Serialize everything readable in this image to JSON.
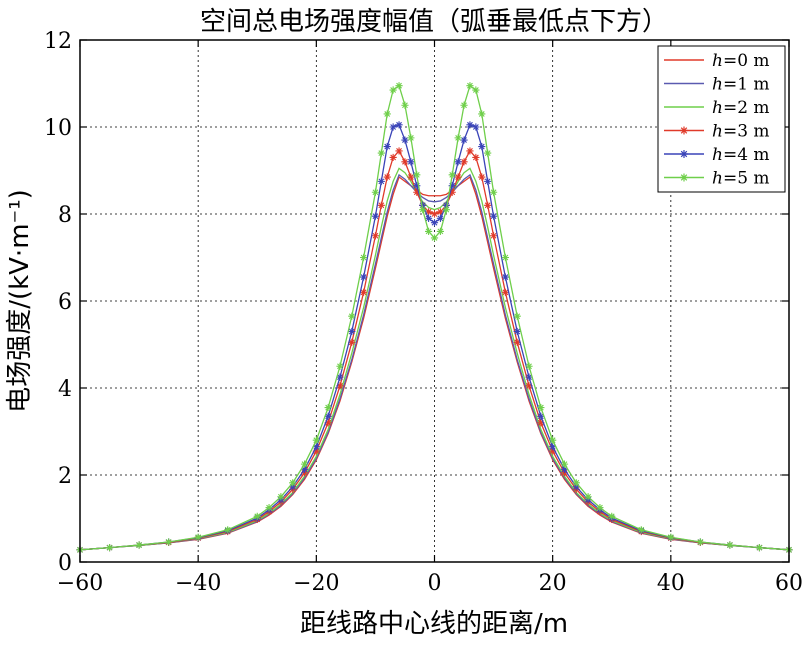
{
  "chart_data": {
    "type": "line",
    "title": "空间总电场强度幅值（弧垂最低点下方）",
    "xlabel": "距线路中心线的距离/m",
    "ylabel": "电场强度/(kV·m⁻¹)",
    "xlim": [
      -60,
      60
    ],
    "ylim": [
      0,
      12
    ],
    "xticks": [
      -60,
      -40,
      -20,
      0,
      20,
      40,
      60
    ],
    "yticks": [
      0,
      2,
      4,
      6,
      8,
      10,
      12
    ],
    "xtick_labels": [
      "−60",
      "−40",
      "−20",
      "0",
      "20",
      "40",
      "60"
    ],
    "ytick_labels": [
      "0",
      "2",
      "4",
      "6",
      "8",
      "10",
      "12"
    ],
    "grid": true,
    "legend_position": "top-right",
    "x": [
      -60,
      -55,
      -50,
      -45,
      -40,
      -35,
      -30,
      -28,
      -26,
      -24,
      -22,
      -20,
      -18,
      -16,
      -14,
      -12,
      -10,
      -9,
      -8,
      -7,
      -6,
      -5,
      -4,
      -3,
      -2,
      -1,
      0,
      1,
      2,
      3,
      4,
      5,
      6,
      7,
      8,
      9,
      10,
      12,
      14,
      16,
      18,
      20,
      22,
      24,
      26,
      28,
      30,
      35,
      40,
      45,
      50,
      55,
      60
    ],
    "series": [
      {
        "name": "h=0 m",
        "color": "#e03a2a",
        "marker": "none",
        "values": [
          0.28,
          0.33,
          0.38,
          0.44,
          0.52,
          0.66,
          0.92,
          1.08,
          1.28,
          1.55,
          1.9,
          2.35,
          2.95,
          3.7,
          4.6,
          5.6,
          6.75,
          7.35,
          7.95,
          8.45,
          8.85,
          8.75,
          8.65,
          8.55,
          8.45,
          8.42,
          8.42,
          8.42,
          8.45,
          8.55,
          8.65,
          8.75,
          8.85,
          8.45,
          7.95,
          7.35,
          6.75,
          5.6,
          4.6,
          3.7,
          2.95,
          2.35,
          1.9,
          1.55,
          1.28,
          1.08,
          0.92,
          0.66,
          0.52,
          0.44,
          0.38,
          0.33,
          0.28
        ]
      },
      {
        "name": "h=1 m",
        "color": "#5a5ab0",
        "marker": "none",
        "values": [
          0.28,
          0.33,
          0.38,
          0.44,
          0.53,
          0.67,
          0.93,
          1.1,
          1.3,
          1.57,
          1.93,
          2.38,
          2.98,
          3.75,
          4.65,
          5.68,
          6.85,
          7.45,
          8.05,
          8.55,
          8.9,
          8.8,
          8.65,
          8.5,
          8.38,
          8.3,
          8.28,
          8.3,
          8.38,
          8.5,
          8.65,
          8.8,
          8.9,
          8.55,
          8.05,
          7.45,
          6.85,
          5.68,
          4.65,
          3.75,
          2.98,
          2.38,
          1.93,
          1.57,
          1.3,
          1.1,
          0.93,
          0.67,
          0.53,
          0.44,
          0.38,
          0.33,
          0.28
        ]
      },
      {
        "name": "h=2 m",
        "color": "#6fcf4a",
        "marker": "none",
        "values": [
          0.28,
          0.33,
          0.38,
          0.45,
          0.54,
          0.68,
          0.95,
          1.12,
          1.33,
          1.6,
          1.97,
          2.43,
          3.05,
          3.85,
          4.8,
          5.85,
          7.05,
          7.7,
          8.3,
          8.75,
          9.05,
          8.95,
          8.75,
          8.5,
          8.28,
          8.15,
          8.1,
          8.15,
          8.28,
          8.5,
          8.75,
          8.95,
          9.05,
          8.75,
          8.3,
          7.7,
          7.05,
          5.85,
          4.8,
          3.85,
          3.05,
          2.43,
          1.97,
          1.6,
          1.33,
          1.12,
          0.95,
          0.68,
          0.54,
          0.45,
          0.38,
          0.33,
          0.28
        ]
      },
      {
        "name": "h=3 m",
        "color": "#e03a2a",
        "marker": "star",
        "values": [
          0.28,
          0.33,
          0.39,
          0.45,
          0.55,
          0.7,
          0.98,
          1.16,
          1.38,
          1.67,
          2.05,
          2.55,
          3.2,
          4.05,
          5.05,
          6.2,
          7.5,
          8.2,
          8.85,
          9.3,
          9.45,
          9.2,
          8.85,
          8.5,
          8.2,
          8.05,
          8.0,
          8.05,
          8.2,
          8.5,
          8.85,
          9.2,
          9.45,
          9.3,
          8.85,
          8.2,
          7.5,
          6.2,
          5.05,
          4.05,
          3.2,
          2.55,
          2.05,
          1.67,
          1.38,
          1.16,
          0.98,
          0.7,
          0.55,
          0.45,
          0.39,
          0.33,
          0.28
        ]
      },
      {
        "name": "h=4 m",
        "color": "#3a44b8",
        "marker": "star",
        "values": [
          0.28,
          0.33,
          0.39,
          0.46,
          0.56,
          0.72,
          1.01,
          1.2,
          1.43,
          1.73,
          2.13,
          2.65,
          3.35,
          4.25,
          5.3,
          6.55,
          7.95,
          8.75,
          9.55,
          10.0,
          10.05,
          9.7,
          9.2,
          8.65,
          8.2,
          7.9,
          7.8,
          7.9,
          8.2,
          8.65,
          9.2,
          9.7,
          10.05,
          10.0,
          9.55,
          8.75,
          7.95,
          6.55,
          5.3,
          4.25,
          3.35,
          2.65,
          2.13,
          1.73,
          1.43,
          1.2,
          1.01,
          0.72,
          0.56,
          0.46,
          0.39,
          0.33,
          0.28
        ]
      },
      {
        "name": "h=5 m",
        "color": "#6fcf4a",
        "marker": "star",
        "values": [
          0.28,
          0.33,
          0.39,
          0.46,
          0.57,
          0.74,
          1.05,
          1.25,
          1.5,
          1.82,
          2.25,
          2.8,
          3.55,
          4.5,
          5.65,
          7.0,
          8.5,
          9.4,
          10.3,
          10.85,
          10.95,
          10.5,
          9.75,
          8.9,
          8.1,
          7.6,
          7.45,
          7.6,
          8.1,
          8.9,
          9.75,
          10.5,
          10.95,
          10.85,
          10.3,
          9.4,
          8.5,
          7.0,
          5.65,
          4.5,
          3.55,
          2.8,
          2.25,
          1.82,
          1.5,
          1.25,
          1.05,
          0.74,
          0.57,
          0.46,
          0.39,
          0.33,
          0.28
        ]
      }
    ]
  }
}
